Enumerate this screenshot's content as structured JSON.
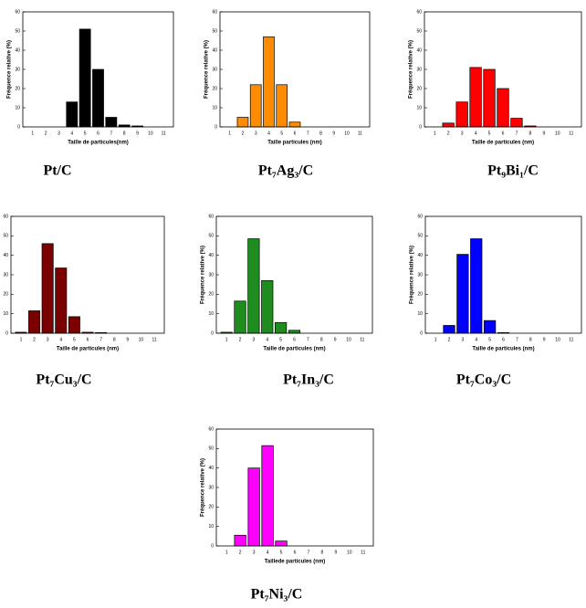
{
  "chart_data": [
    {
      "type": "bar",
      "caption": "Pt/C",
      "xlabel": "Taille de particules(nm)",
      "ylabel": "Fréquence relative (%)",
      "color": "#000000",
      "categories": [
        "1",
        "2",
        "3",
        "4",
        "5",
        "6",
        "7",
        "8",
        "9",
        "10",
        "11"
      ],
      "values": [
        0,
        0,
        0,
        13,
        51,
        30,
        5,
        1,
        0.5,
        0,
        0
      ],
      "ylim": [
        0,
        60
      ],
      "yticks": [
        0,
        10,
        20,
        30,
        40,
        50,
        60
      ]
    },
    {
      "type": "bar",
      "caption": "Pt₇Ag₃/C",
      "xlabel": "Taille particules (nm)",
      "ylabel": "Fréquence relative (%)",
      "color": "#ff8c00",
      "categories": [
        "1",
        "2",
        "3",
        "4",
        "5",
        "6",
        "7",
        "8",
        "9",
        "10",
        "11"
      ],
      "values": [
        0,
        5,
        22,
        47,
        22,
        2.5,
        0,
        0,
        0,
        0,
        0
      ],
      "ylim": [
        0,
        60
      ],
      "yticks": [
        0,
        10,
        20,
        30,
        40,
        50,
        60
      ]
    },
    {
      "type": "bar",
      "caption": "Pt₉Bi₁/C",
      "xlabel": "Taille de particules (nm)",
      "ylabel": "Fréquence relative (%)",
      "color": "#ff0000",
      "categories": [
        "1",
        "2",
        "3",
        "4",
        "5",
        "6",
        "7",
        "8",
        "9",
        "10",
        "11"
      ],
      "values": [
        0,
        2,
        13,
        31,
        30,
        20,
        4.5,
        0.5,
        0,
        0,
        0
      ],
      "ylim": [
        0,
        60
      ],
      "yticks": [
        0,
        10,
        20,
        30,
        40,
        50,
        60
      ]
    },
    {
      "type": "bar",
      "caption": "Pt₇Cu₃/C",
      "xlabel": "Taille de particules (nm)",
      "color": "#7b0000",
      "categories": [
        "1",
        "2",
        "3",
        "4",
        "5",
        "6",
        "7",
        "8",
        "9",
        "10",
        "11"
      ],
      "values": [
        0.5,
        11.5,
        46,
        33.5,
        8.5,
        0.5,
        0.3,
        0,
        0,
        0,
        0
      ],
      "ylim": [
        0,
        60
      ],
      "yticks": [
        0,
        10,
        20,
        30,
        40,
        50,
        60
      ]
    },
    {
      "type": "bar",
      "caption": "Pt₇In₃/C",
      "xlabel": "Taille de particules (nm)",
      "ylabel": "Fréquence relative (%)",
      "color": "#1e8c1e",
      "categories": [
        "1",
        "2",
        "3",
        "4",
        "5",
        "6",
        "7",
        "8",
        "9",
        "10",
        "11"
      ],
      "values": [
        0.5,
        16.5,
        48.5,
        27,
        5.5,
        1.5,
        0,
        0,
        0,
        0,
        0
      ],
      "ylim": [
        0,
        60
      ],
      "yticks": [
        0,
        10,
        20,
        30,
        40,
        50,
        60
      ]
    },
    {
      "type": "bar",
      "caption": "Pt₇Co₃/C",
      "xlabel": "Taille de particules (nm)",
      "ylabel": "Fréquence relative (%)",
      "color": "#0000ff",
      "categories": [
        "1",
        "2",
        "3",
        "4",
        "5",
        "6",
        "7",
        "8",
        "9",
        "10",
        "11"
      ],
      "values": [
        0,
        4,
        40.5,
        48.5,
        6.5,
        0.3,
        0,
        0,
        0,
        0,
        0
      ],
      "ylim": [
        0,
        60
      ],
      "yticks": [
        0,
        10,
        20,
        30,
        40,
        50,
        60
      ]
    },
    {
      "type": "bar",
      "caption": "Pt₇Ni₃/C",
      "xlabel": "Taillede particules (nm)",
      "ylabel": "Fréquence relative (%)",
      "color": "#ff00ff",
      "categories": [
        "1",
        "2",
        "3",
        "4",
        "5",
        "6",
        "7",
        "8",
        "9",
        "10",
        "11"
      ],
      "values": [
        0,
        5.5,
        40,
        51.5,
        2.5,
        0,
        0,
        0,
        0,
        0,
        0
      ],
      "ylim": [
        0,
        60
      ],
      "yticks": [
        0,
        10,
        20,
        30,
        40,
        50,
        60
      ]
    }
  ]
}
